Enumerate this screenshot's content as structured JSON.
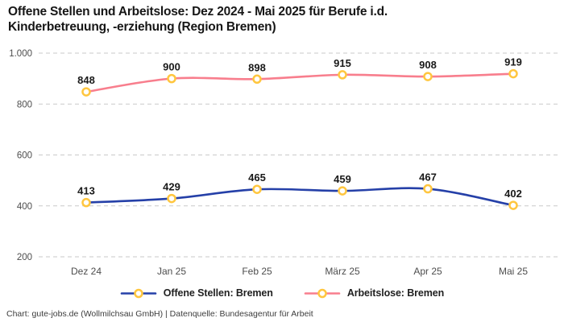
{
  "header": {
    "title": "Offene Stellen und Arbeitslose: Dez 2024 - Mai 2025 für Berufe i.d.\nKinderbetreuung, -erziehung (Region Bremen)"
  },
  "chart_data": {
    "type": "line",
    "categories": [
      "Dez 24",
      "Jan 25",
      "Feb 25",
      "März 25",
      "Apr 25",
      "Mai 25"
    ],
    "series": [
      {
        "name": "Offene Stellen: Bremen",
        "values": [
          413,
          429,
          465,
          459,
          467,
          402
        ],
        "color": "#2540a8"
      },
      {
        "name": "Arbeitslose: Bremen",
        "values": [
          848,
          900,
          898,
          915,
          908,
          919
        ],
        "color": "#f87e8d"
      }
    ],
    "marker": {
      "fill": "#ffffff",
      "stroke": "#ffc63f"
    },
    "y_axis": {
      "range": [
        200,
        1000
      ],
      "ticks": [
        {
          "value": 1000,
          "label": "1.000"
        },
        {
          "value": 800,
          "label": "800"
        },
        {
          "value": 600,
          "label": "600"
        },
        {
          "value": 400,
          "label": "400"
        },
        {
          "value": 200,
          "label": "200"
        }
      ]
    },
    "grid": "horizontal-dashed",
    "grid_color": "#c9c9c9",
    "axis_text_color": "#4d4d4d",
    "data_label_color": "#191919",
    "data_labels": true,
    "legend_position": "bottom-center"
  },
  "footer": {
    "credit": "Chart: gute-jobs.de (Wollmilchsau GmbH) | Datenquelle: Bundesagentur für Arbeit"
  }
}
